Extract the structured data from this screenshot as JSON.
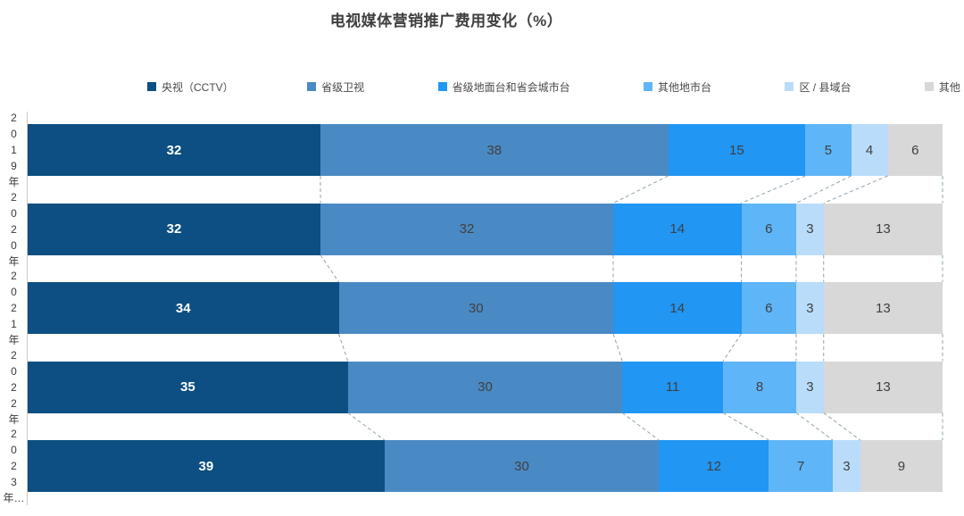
{
  "title": "电视媒体营销推广费用变化（%）",
  "chart_data": {
    "type": "bar",
    "stacked": true,
    "orientation": "horizontal",
    "title": "电视媒体营销推广费用变化（%）",
    "categories": [
      "2019年",
      "2020年",
      "2021年",
      "2022年",
      "2023年…"
    ],
    "series": [
      {
        "name": "央视（CCTV）",
        "color": "#0d4f82",
        "values": [
          32,
          32,
          34,
          35,
          39
        ]
      },
      {
        "name": "省级卫视",
        "color": "#4a8ac4",
        "values": [
          38,
          32,
          30,
          30,
          30
        ]
      },
      {
        "name": "省级地面台和省会城市台",
        "color": "#2196f3",
        "values": [
          15,
          14,
          14,
          11,
          12
        ]
      },
      {
        "name": "其他地市台",
        "color": "#5eb5f7",
        "values": [
          5,
          6,
          6,
          8,
          7
        ]
      },
      {
        "name": "区 / 县域台",
        "color": "#b9dcfa",
        "values": [
          4,
          3,
          3,
          3,
          3
        ]
      },
      {
        "name": "其他",
        "color": "#d8d8d8",
        "values": [
          6,
          13,
          13,
          13,
          9
        ]
      }
    ],
    "xlim": [
      0,
      100
    ],
    "legend_position": "top",
    "value_labels": "inside",
    "connector_style": "dashed",
    "connector_color": "#90a4ae",
    "first_series_label_color": "#ffffff",
    "other_series_label_color": "#3f3f3f"
  }
}
